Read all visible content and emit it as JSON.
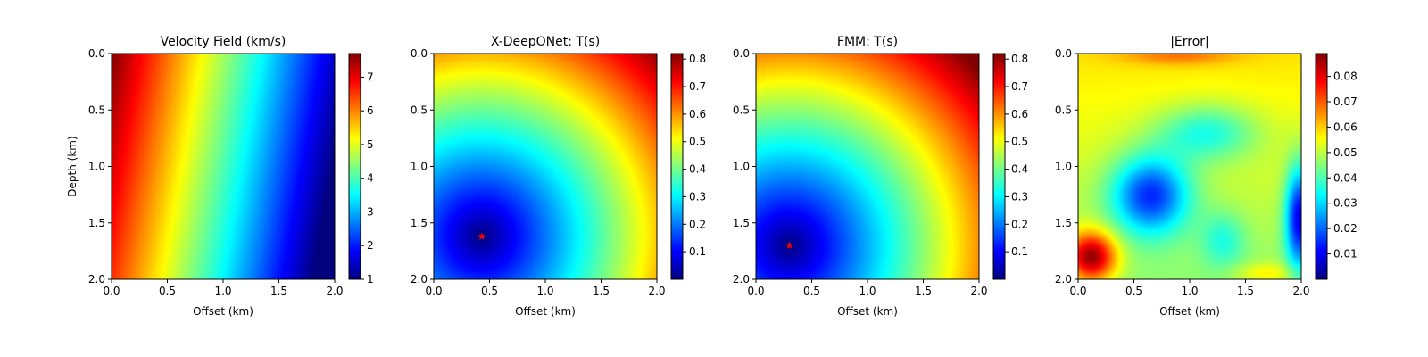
{
  "figure": {
    "colormap": "jet",
    "jet_stops": [
      "#00007f",
      "#0000ff",
      "#007fff",
      "#00ffff",
      "#7fff7f",
      "#ffff00",
      "#ff7f00",
      "#ff0000",
      "#7f0000"
    ],
    "source_marker_color": "#ff0000"
  },
  "chart_data": [
    {
      "type": "heatmap",
      "title": "Velocity Field (km/s)",
      "xlabel": "Offset (km)",
      "ylabel": "Depth (km)",
      "xlim": [
        0.0,
        2.0
      ],
      "ylim": [
        2.0,
        0.0
      ],
      "xticks": [
        "0.0",
        "0.5",
        "1.0",
        "1.5",
        "2.0"
      ],
      "yticks": [
        "0.0",
        "0.5",
        "1.0",
        "1.5",
        "2.0"
      ],
      "field": "velocity",
      "clim": [
        1.0,
        7.7
      ],
      "colorbar_ticks": [
        "1",
        "2",
        "3",
        "4",
        "5",
        "6",
        "7"
      ]
    },
    {
      "type": "heatmap",
      "title": "X-DeepONet: T(s)",
      "xlabel": "Offset (km)",
      "ylabel": "",
      "xlim": [
        0.0,
        2.0
      ],
      "ylim": [
        2.0,
        0.0
      ],
      "xticks": [
        "0.0",
        "0.5",
        "1.0",
        "1.5",
        "2.0"
      ],
      "yticks": [
        "0.0",
        "0.5",
        "1.0",
        "1.5",
        "2.0"
      ],
      "field": "traveltime",
      "source": [
        0.43,
        1.62
      ],
      "clim": [
        0.0,
        0.82
      ],
      "colorbar_ticks": [
        "0.1",
        "0.2",
        "0.3",
        "0.4",
        "0.5",
        "0.6",
        "0.7",
        "0.8"
      ]
    },
    {
      "type": "heatmap",
      "title": "FMM: T(s)",
      "xlabel": "Offset (km)",
      "ylabel": "",
      "xlim": [
        0.0,
        2.0
      ],
      "ylim": [
        2.0,
        0.0
      ],
      "xticks": [
        "0.0",
        "0.5",
        "1.0",
        "1.5",
        "2.0"
      ],
      "yticks": [
        "0.0",
        "0.5",
        "1.0",
        "1.5",
        "2.0"
      ],
      "field": "traveltime",
      "source": [
        0.3,
        1.7
      ],
      "clim": [
        0.0,
        0.82
      ],
      "colorbar_ticks": [
        "0.1",
        "0.2",
        "0.3",
        "0.4",
        "0.5",
        "0.6",
        "0.7",
        "0.8"
      ]
    },
    {
      "type": "heatmap",
      "title": "|Error|",
      "xlabel": "Offset (km)",
      "ylabel": "",
      "xlim": [
        0.0,
        2.0
      ],
      "ylim": [
        2.0,
        0.0
      ],
      "xticks": [
        "0.0",
        "0.5",
        "1.0",
        "1.5",
        "2.0"
      ],
      "yticks": [
        "0.0",
        "0.5",
        "1.0",
        "1.5",
        "2.0"
      ],
      "field": "error",
      "clim": [
        0.0,
        0.089
      ],
      "colorbar_ticks": [
        "0.01",
        "0.02",
        "0.03",
        "0.04",
        "0.05",
        "0.06",
        "0.07",
        "0.08"
      ]
    }
  ]
}
